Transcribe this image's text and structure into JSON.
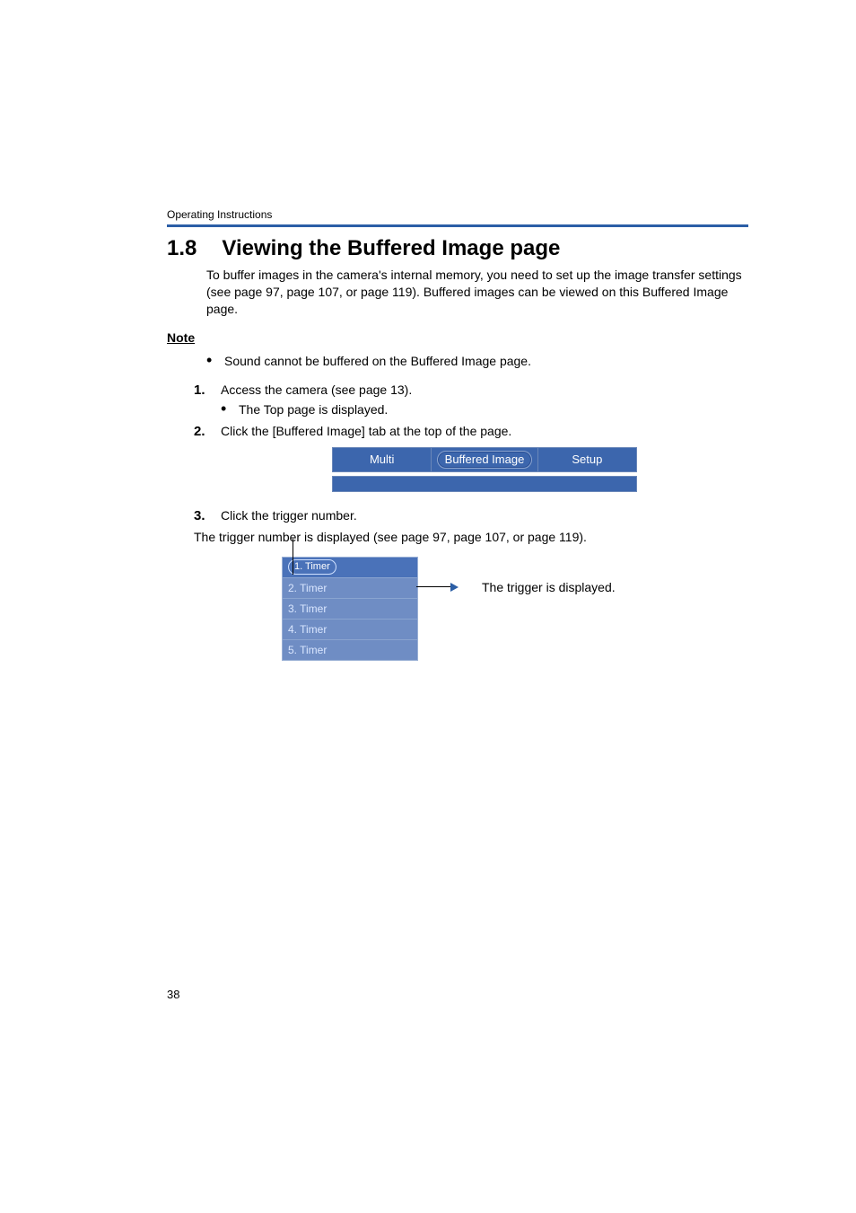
{
  "doc": {
    "header_label": "Operating Instructions",
    "section_number": "1.8",
    "section_title": "Viewing the Buffered Image page",
    "intro": "To buffer images in the camera's internal memory, you need to set up the image transfer settings (see page 97, page 107, or page 119). Buffered images can be viewed on this Buffered Image page.",
    "note_label": "Note",
    "note_items": [
      "Sound cannot be buffered on the Buffered Image page."
    ],
    "steps": [
      {
        "text": "Access the camera (see page 13).",
        "sub": [
          "The Top page is displayed."
        ]
      },
      {
        "text": "Click the [Buffered Image] tab at the top of the page.",
        "sub": []
      },
      {
        "text": "Click the trigger number.",
        "sub": []
      }
    ],
    "tabs": {
      "left": "Multi",
      "center": "Buffered Image",
      "right": "Setup"
    },
    "trigger_caption": "The trigger number is displayed (see page 97, page 107, or page 119).",
    "triggers": [
      "1. Timer",
      "2. Timer",
      "3. Timer",
      "4. Timer",
      "5. Timer"
    ],
    "arrow_label": "The trigger is displayed.",
    "page_number": "38"
  },
  "colors": {
    "rule": "#2b5ea6",
    "tab_bg": "#3c66ad",
    "tab_border": "#6a87b9",
    "trigger_bg": "#6f8dc4",
    "trigger_selected": "#4a72b9",
    "trigger_text": "#d9e6ff"
  }
}
